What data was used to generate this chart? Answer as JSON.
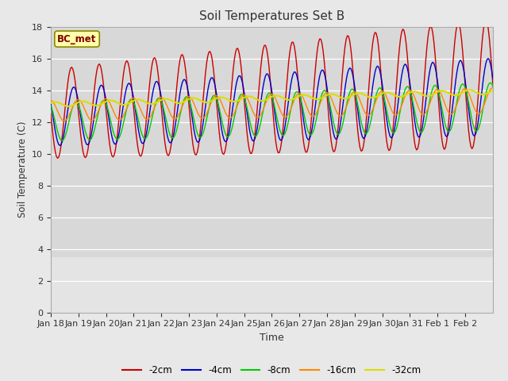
{
  "title": "Soil Temperatures Set B",
  "xlabel": "Time",
  "ylabel": "Soil Temperature (C)",
  "annotation": "BC_met",
  "ylim": [
    0,
    18
  ],
  "yticks": [
    0,
    2,
    4,
    6,
    8,
    10,
    12,
    14,
    16,
    18
  ],
  "x_tick_labels": [
    "Jan 18",
    "Jan 19",
    "Jan 20",
    "Jan 21",
    "Jan 22",
    "Jan 23",
    "Jan 24",
    "Jan 25",
    "Jan 26",
    "Jan 27",
    "Jan 28",
    "Jan 29",
    "Jan 30",
    "Jan 31",
    "Feb 1",
    "Feb 2"
  ],
  "series": {
    "-2cm": {
      "color": "#cc0000",
      "lw": 1.0
    },
    "-4cm": {
      "color": "#0000cc",
      "lw": 1.0
    },
    "-8cm": {
      "color": "#00cc00",
      "lw": 1.0
    },
    "-16cm": {
      "color": "#ff8800",
      "lw": 1.0
    },
    "-32cm": {
      "color": "#dddd00",
      "lw": 1.5
    }
  },
  "bg_color": "#e8e8e8",
  "plot_bg_upper": "#d8d8d8",
  "plot_bg_lower": "#e0e0e0",
  "grid_color": "#ffffff"
}
